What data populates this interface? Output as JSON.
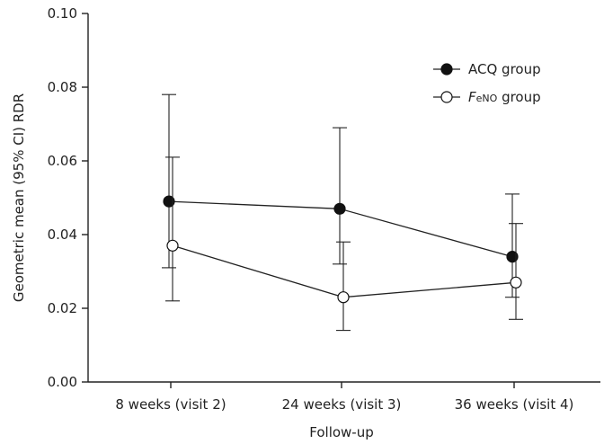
{
  "chart_data": {
    "type": "line",
    "title": "",
    "xlabel": "Follow-up",
    "ylabel": "Geometric mean (95% CI) RDR",
    "categories": [
      "8 weeks (visit 2)",
      "24 weeks (visit 3)",
      "36 weeks (visit 4)"
    ],
    "ylim": [
      0,
      0.1
    ],
    "yticks": [
      "0.00",
      "0.02",
      "0.04",
      "0.06",
      "0.08",
      "0.10"
    ],
    "grid": false,
    "legend_position": "top-right",
    "series": [
      {
        "name": "ACQ group",
        "marker": "filled-circle",
        "values": [
          0.049,
          0.047,
          0.034
        ],
        "ci_low": [
          0.031,
          0.032,
          0.023
        ],
        "ci_high": [
          0.078,
          0.069,
          0.051
        ]
      },
      {
        "name": "FeNO group",
        "marker": "open-circle",
        "values": [
          0.037,
          0.023,
          0.027
        ],
        "ci_low": [
          0.022,
          0.014,
          0.017
        ],
        "ci_high": [
          0.061,
          0.038,
          0.043
        ]
      }
    ]
  },
  "legend": {
    "acq_label": "ACQ group",
    "feno_label_italic": "F",
    "feno_label_sub": "eNO",
    "feno_label_rest": " group"
  }
}
